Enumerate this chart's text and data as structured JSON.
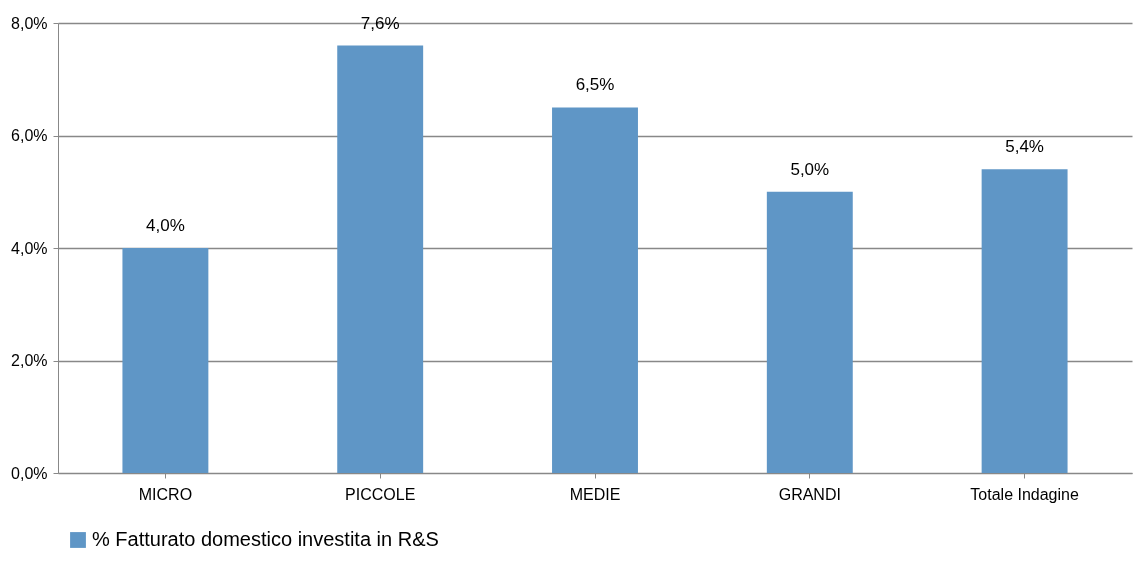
{
  "chart_data": {
    "type": "bar",
    "categories": [
      "MICRO",
      "PICCOLE",
      "MEDIE",
      "GRANDI",
      "Totale Indagine"
    ],
    "series": [
      {
        "name": "% Fatturato domestico investita in R&S",
        "color": "#5f96c6",
        "values": [
          4.0,
          7.6,
          6.5,
          5.0,
          5.4
        ],
        "value_labels": [
          "4,0%",
          "7,6%",
          "6,5%",
          "5,0%",
          "5,4%"
        ]
      }
    ],
    "ylim": [
      0,
      8
    ],
    "yticks": [
      {
        "value": 0,
        "label": "0,0%"
      },
      {
        "value": 2,
        "label": "2,0%"
      },
      {
        "value": 4,
        "label": "4,0%"
      },
      {
        "value": 6,
        "label": "6,0%"
      },
      {
        "value": 8,
        "label": "8,0%"
      }
    ],
    "grid": "y",
    "legend": "bottom"
  }
}
